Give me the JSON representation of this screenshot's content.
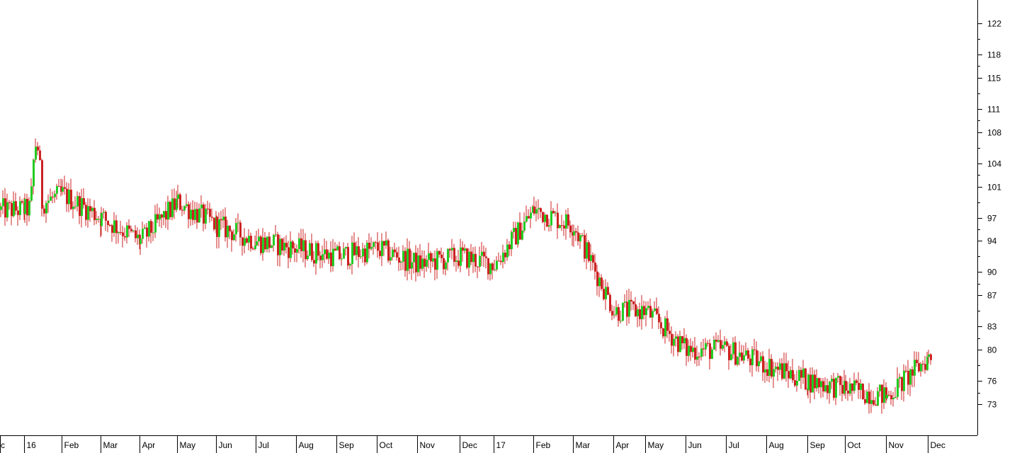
{
  "chart_data": {
    "type": "candlestick",
    "title": "",
    "xlabel": "",
    "ylabel": "",
    "grid": false,
    "y_axis_side": "right",
    "ylim": [
      69,
      125
    ],
    "y_ticks": [
      73,
      76,
      80,
      83,
      87,
      90,
      94,
      97,
      101,
      104,
      108,
      111,
      115,
      118,
      122
    ],
    "x_ticks": [
      "Dec",
      "16",
      "Feb",
      "Mar",
      "Apr",
      "May",
      "Jun",
      "Jul",
      "Aug",
      "Sep",
      "Oct",
      "Nov",
      "Dec",
      "17",
      "Feb",
      "Mar",
      "Apr",
      "May",
      "Jun",
      "Jul",
      "Aug",
      "Sep",
      "Oct",
      "Nov",
      "Dec"
    ],
    "x_tick_labels": [
      "c",
      "16",
      "Feb",
      "Mar",
      "Apr",
      "May",
      "Jun",
      "Jul",
      "Aug",
      "Sep",
      "Oct",
      "Nov",
      "Dec",
      "17",
      "Feb",
      "Mar",
      "Apr",
      "May",
      "Jun",
      "Jul",
      "Aug",
      "Sep",
      "Oct",
      "Nov",
      "Dec"
    ],
    "colors": {
      "up": "#22cc22",
      "down": "#cc2222",
      "axis": "#000000",
      "background": "#ffffff"
    },
    "monthly_closes": [
      98,
      100,
      97,
      94,
      99,
      96,
      94,
      93,
      92,
      93,
      91,
      92,
      91,
      98,
      96,
      85,
      85,
      80,
      80,
      78,
      76,
      75,
      74,
      79,
      79
    ]
  }
}
